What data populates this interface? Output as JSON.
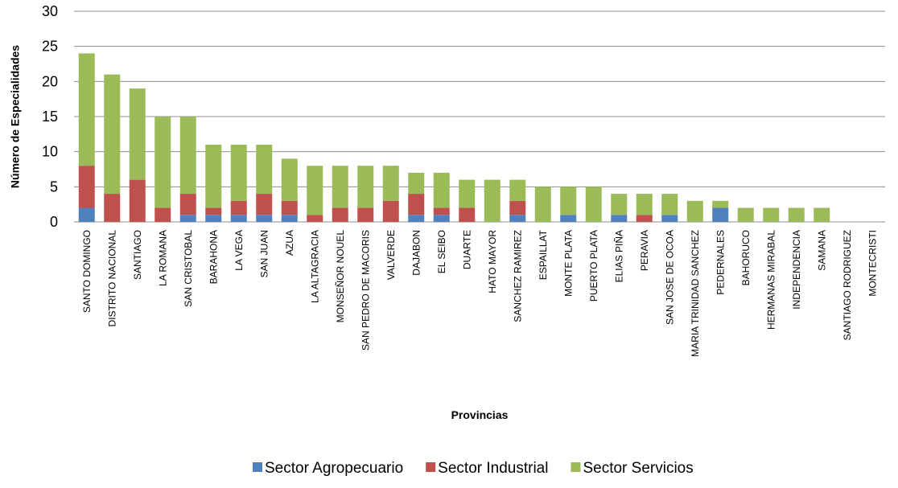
{
  "chart_data": {
    "type": "stacked_bar",
    "x_label": "Provincias",
    "y_label": "Número de Especialidades",
    "categories": [
      "SANTO DOMINGO",
      "DISTRITO NACIONAL",
      "SANTIAGO",
      "LA ROMANA",
      "SAN CRISTOBAL",
      "BARAHONA",
      "LA VEGA",
      "SAN JUAN",
      "AZUA",
      "LA ALTAGRACIA",
      "MONSEÑOR NOUEL",
      "SAN PEDRO DE MACORIS",
      "VALVERDE",
      "DAJABON",
      "EL SEIBO",
      "DUARTE",
      "HATO MAYOR",
      "SANCHEZ RAMIREZ",
      "ESPAILLAT",
      "MONTE PLATA",
      "PUERTO PLATA",
      "ELIAS PIÑA",
      "PERAVIA",
      "SAN JOSE DE OCOA",
      "MARIA TRINIDAD SANCHEZ",
      "PEDERNALES",
      "BAHORUCO",
      "HERMANAS MIRABAL",
      "INDEPENDENCIA",
      "SAMANA",
      "SANTIAGO RODRIGUEZ",
      "MONTECRISTI"
    ],
    "series": [
      {
        "name": "Sector Agropecuario",
        "color": "#4f81bd",
        "values": [
          2,
          0,
          0,
          0,
          1,
          1,
          1,
          1,
          1,
          0,
          0,
          0,
          0,
          1,
          1,
          0,
          0,
          1,
          0,
          1,
          0,
          1,
          0,
          1,
          0,
          2,
          0,
          0,
          0,
          0,
          0,
          0
        ]
      },
      {
        "name": "Sector Industrial",
        "color": "#c0504d",
        "values": [
          6,
          4,
          6,
          2,
          3,
          1,
          2,
          3,
          2,
          1,
          2,
          2,
          3,
          3,
          1,
          2,
          0,
          2,
          0,
          0,
          0,
          0,
          1,
          0,
          0,
          0,
          0,
          0,
          0,
          0,
          0,
          0
        ]
      },
      {
        "name": "Sector Servicios",
        "color": "#9bbb59",
        "values": [
          16,
          17,
          13,
          13,
          11,
          9,
          8,
          7,
          6,
          7,
          6,
          6,
          5,
          3,
          5,
          4,
          6,
          3,
          5,
          4,
          5,
          3,
          3,
          3,
          3,
          1,
          2,
          2,
          2,
          2,
          0,
          0
        ]
      }
    ],
    "ylim": [
      0,
      30
    ],
    "yticks": [
      0,
      5,
      10,
      15,
      20,
      25,
      30
    ],
    "grid": true,
    "legend": "bottom"
  }
}
